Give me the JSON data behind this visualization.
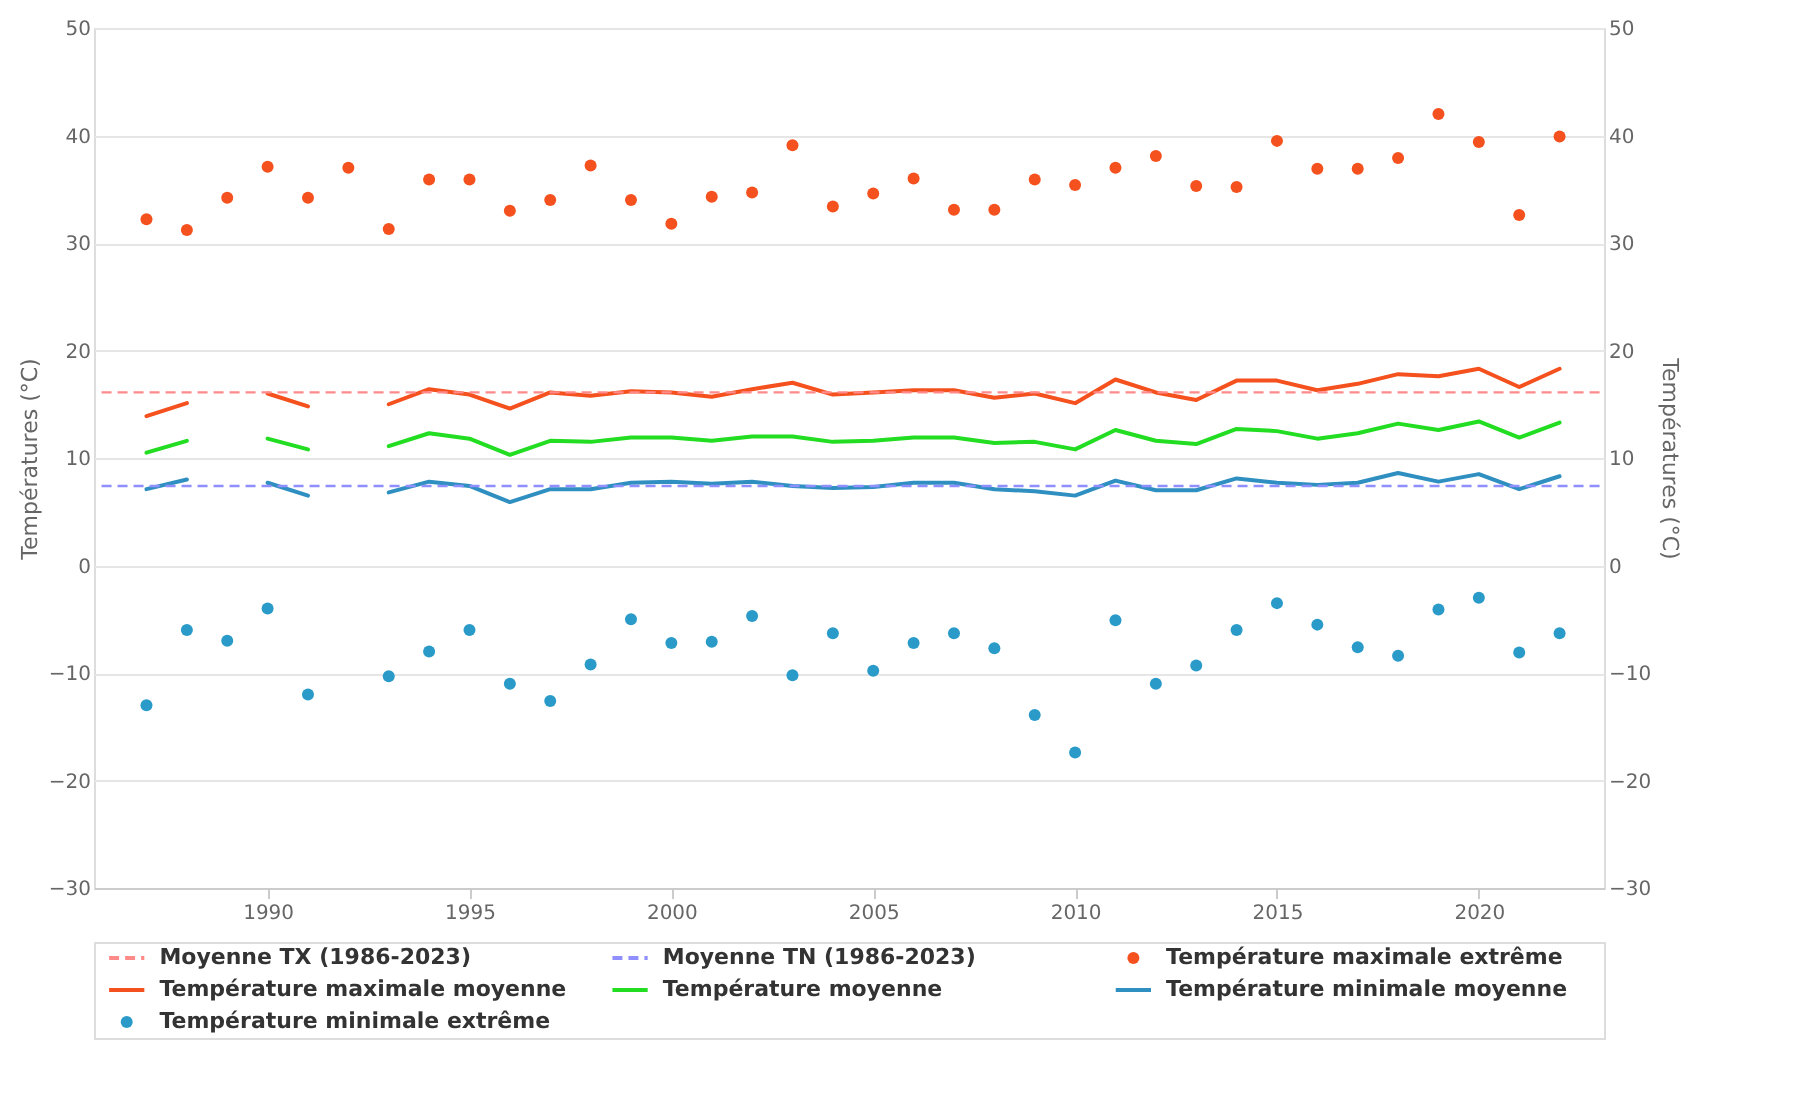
{
  "chart_data": {
    "type": "line",
    "x": [
      1987,
      1988,
      1989,
      1990,
      1991,
      1992,
      1993,
      1994,
      1995,
      1996,
      1997,
      1998,
      1999,
      2000,
      2001,
      2002,
      2003,
      2004,
      2005,
      2006,
      2007,
      2008,
      2009,
      2010,
      2011,
      2012,
      2013,
      2014,
      2015,
      2016,
      2017,
      2018,
      2019,
      2020,
      2021,
      2022
    ],
    "ylabel": "Températures (°C)",
    "y2label": "Températures (°C)",
    "xlim": [
      1985.7,
      2023.1
    ],
    "xticks": [
      1990,
      1995,
      2000,
      2005,
      2010,
      2015,
      2020
    ],
    "ylim": [
      -30,
      50
    ],
    "yticks": [
      -30,
      -20,
      -10,
      0,
      10,
      20,
      30,
      40,
      50
    ],
    "y2lim": [
      -30,
      50
    ],
    "y2ticks": [
      -30,
      -20,
      -10,
      0,
      10,
      20,
      30,
      40,
      50
    ],
    "grid": "y",
    "legend": "bottom",
    "line_style": "solid",
    "ref_lines": [
      {
        "axis": "y",
        "value": 16.1,
        "label": "Moyenne TX (1986-2023)",
        "color": "#ff8a8a",
        "line_style": "dashed"
      },
      {
        "axis": "y",
        "value": 7.4,
        "label": "Moyenne TN (1986-2023)",
        "color": "#8f8fff",
        "line_style": "dashed"
      }
    ],
    "series": [
      {
        "name": "Température maximale extrême",
        "type": "scatter",
        "marker": "circle",
        "color": "#f4511e",
        "values": [
          32.2,
          31.2,
          34.2,
          37.1,
          34.2,
          37.0,
          31.3,
          35.9,
          35.9,
          33.0,
          34.0,
          37.2,
          34.0,
          31.8,
          34.3,
          34.7,
          39.1,
          33.4,
          34.6,
          36.0,
          33.1,
          33.1,
          35.9,
          35.4,
          37.0,
          38.1,
          35.3,
          35.2,
          39.5,
          36.9,
          36.9,
          37.9,
          42.0,
          39.4,
          32.6,
          39.9
        ]
      },
      {
        "name": "Température maximale moyenne",
        "color": "#f4511e",
        "values": [
          13.9,
          15.1,
          null,
          16.0,
          14.8,
          null,
          15.0,
          16.4,
          15.9,
          14.6,
          16.1,
          15.8,
          16.2,
          16.1,
          15.7,
          16.4,
          17.0,
          15.9,
          16.1,
          16.3,
          16.3,
          15.6,
          16.0,
          15.1,
          17.3,
          16.1,
          15.4,
          17.2,
          17.2,
          16.3,
          16.9,
          17.8,
          17.6,
          18.3,
          16.6,
          18.3
        ]
      },
      {
        "name": "Température moyenne",
        "color": "#22dd22",
        "values": [
          10.5,
          11.6,
          null,
          11.8,
          10.8,
          null,
          11.1,
          12.3,
          11.8,
          10.3,
          11.6,
          11.5,
          11.9,
          11.9,
          11.6,
          12.0,
          12.0,
          11.5,
          11.6,
          11.9,
          11.9,
          11.4,
          11.5,
          10.8,
          12.6,
          11.6,
          11.3,
          12.7,
          12.5,
          11.8,
          12.3,
          13.2,
          12.6,
          13.4,
          11.9,
          13.3
        ]
      },
      {
        "name": "Température minimale moyenne",
        "color": "#2f8fc0",
        "values": [
          7.1,
          8.0,
          null,
          7.7,
          6.5,
          null,
          6.8,
          7.8,
          7.4,
          5.9,
          7.1,
          7.1,
          7.7,
          7.8,
          7.6,
          7.8,
          7.4,
          7.2,
          7.3,
          7.7,
          7.7,
          7.1,
          6.9,
          6.5,
          7.9,
          7.0,
          7.0,
          8.1,
          7.7,
          7.5,
          7.7,
          8.6,
          7.8,
          8.5,
          7.1,
          8.3
        ]
      },
      {
        "name": "Température minimale extrême",
        "type": "scatter",
        "marker": "circle",
        "color": "#2a9bc8",
        "values": [
          -13.0,
          -6.0,
          -7.0,
          -4.0,
          -12.0,
          null,
          -10.3,
          -8.0,
          -6.0,
          -11.0,
          -12.6,
          -9.2,
          -5.0,
          -7.2,
          -7.1,
          -4.7,
          -10.2,
          -6.3,
          -9.8,
          -7.2,
          -6.3,
          -7.7,
          -13.9,
          -17.4,
          -5.1,
          -11.0,
          -9.3,
          -6.0,
          -3.5,
          -5.5,
          -7.6,
          -8.4,
          -4.1,
          -3.0,
          -8.1,
          -6.3
        ]
      }
    ]
  }
}
